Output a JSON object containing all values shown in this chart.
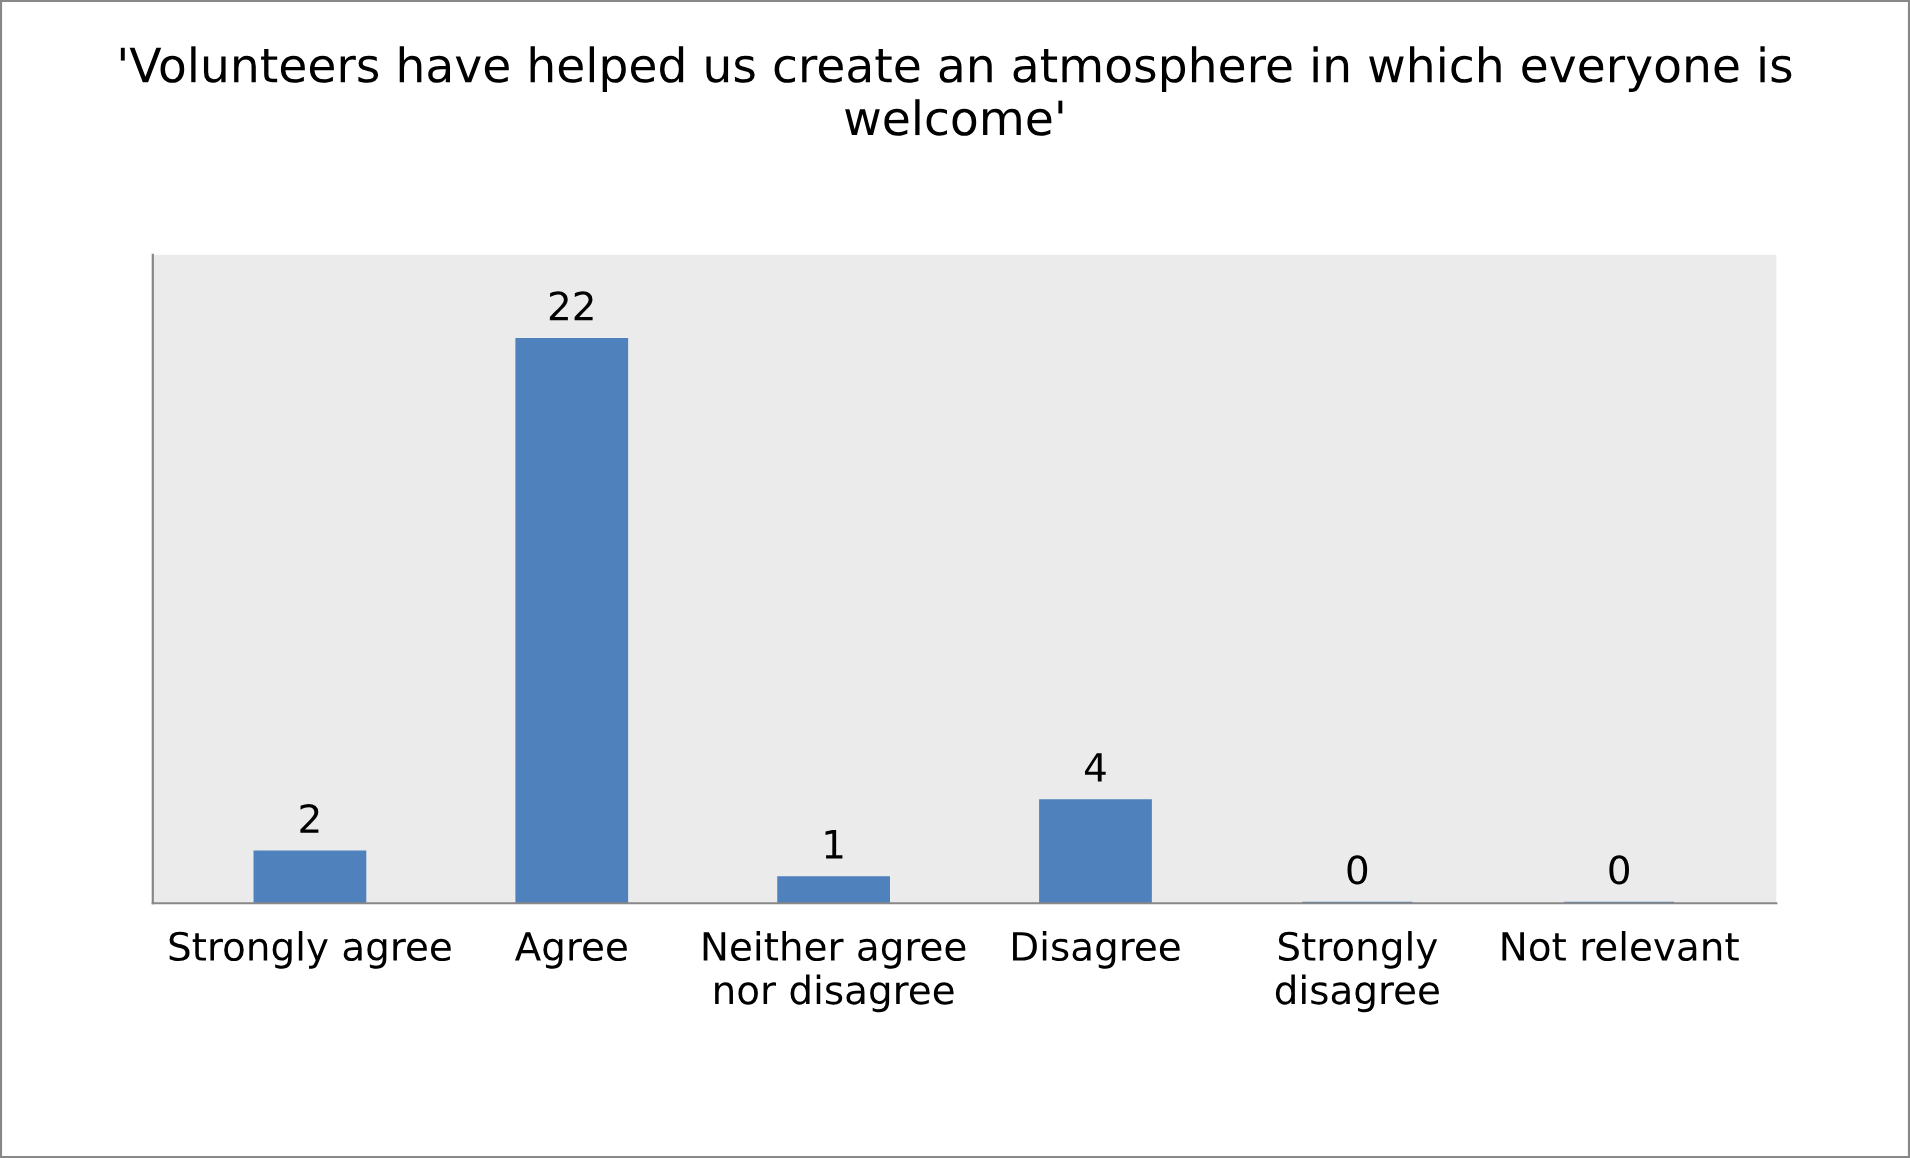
{
  "chart_data": {
    "type": "bar",
    "title": "'Volunteers have helped us create an atmosphere in which everyone is welcome'",
    "categories": [
      "Strongly agree",
      "Agree",
      "Neither agree nor disagree",
      "Disagree",
      "Strongly disagree",
      "Not relevant"
    ],
    "values": [
      2,
      22,
      1,
      4,
      0,
      0
    ],
    "color": "#4f81bd",
    "data_labels": true,
    "grid": false,
    "tick_labels": "x"
  }
}
